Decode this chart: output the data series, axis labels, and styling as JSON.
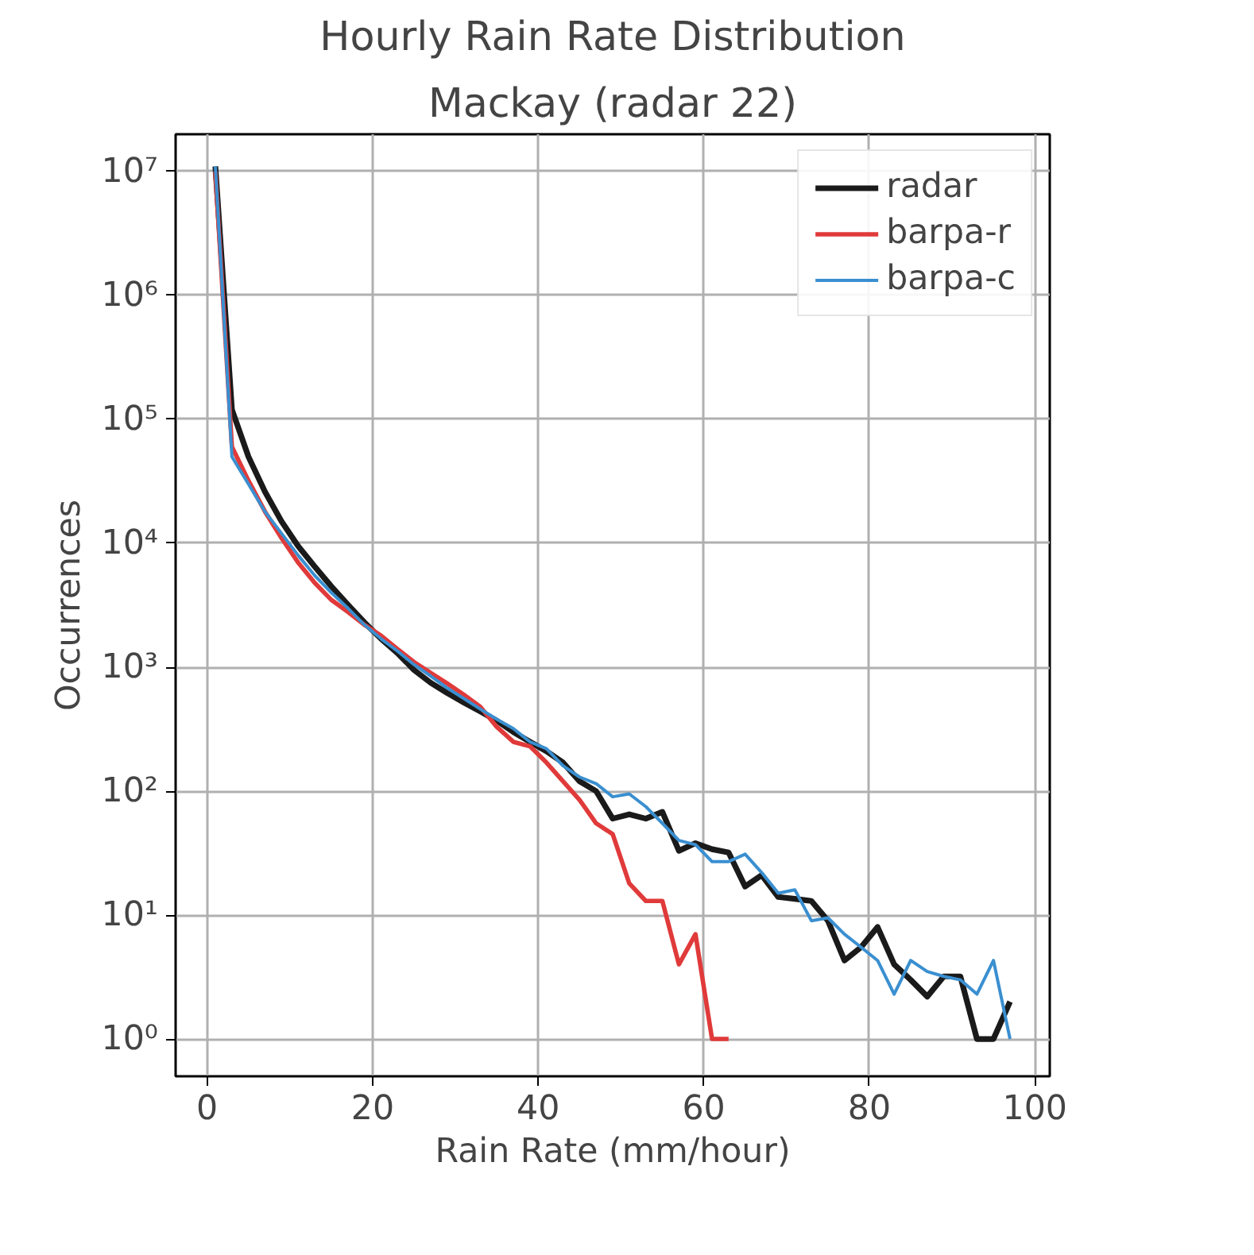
{
  "chart_data": {
    "type": "line",
    "title": "Hourly Rain Rate Distribution",
    "subtitle": "Mackay (radar 22)",
    "xlabel": "Rain Rate (mm/hour)",
    "ylabel": "Occurrences",
    "xlim": [
      -3.8,
      101.8
    ],
    "xticks": [
      0,
      20,
      40,
      60,
      80,
      100
    ],
    "ylim": [
      0.5,
      20000000
    ],
    "yticks": [
      {
        "value": 1,
        "label": "10⁰"
      },
      {
        "value": 10,
        "label": "10¹"
      },
      {
        "value": 100,
        "label": "10²"
      },
      {
        "value": 1000,
        "label": "10³"
      },
      {
        "value": 10000,
        "label": "10⁴"
      },
      {
        "value": 100000,
        "label": "10⁵"
      },
      {
        "value": 1000000,
        "label": "10⁶"
      },
      {
        "value": 10000000,
        "label": "10⁷"
      }
    ],
    "log": "y",
    "grid": true,
    "legend": "top right",
    "line_style": "solid",
    "marker": "none",
    "series": [
      {
        "name": "radar",
        "color": "#1a1a1a",
        "x": [
          1,
          3,
          5,
          7,
          9,
          11,
          13,
          15,
          17,
          19,
          21,
          23,
          25,
          27,
          29,
          31,
          33,
          35,
          37,
          39,
          41,
          43,
          45,
          47,
          49,
          51,
          53,
          55,
          57,
          59,
          61,
          63,
          65,
          67,
          69,
          71,
          73,
          75,
          77,
          79,
          81,
          83,
          85,
          87,
          89,
          91,
          93,
          95,
          97
        ],
        "values": [
          11000000,
          120000,
          50000,
          26000,
          15000,
          9500,
          6500,
          4500,
          3200,
          2300,
          1700,
          1300,
          950,
          750,
          620,
          520,
          440,
          370,
          300,
          250,
          210,
          170,
          120,
          100,
          60,
          65,
          60,
          68,
          33,
          38,
          34,
          32,
          17,
          21,
          14,
          13.5,
          13,
          9,
          4.3,
          5.5,
          8,
          4,
          3,
          2.2,
          3.2,
          3.2,
          1,
          1,
          2
        ]
      },
      {
        "name": "barpa-r",
        "color": "#e03a3a",
        "x": [
          1,
          3,
          5,
          7,
          9,
          11,
          13,
          15,
          17,
          19,
          21,
          23,
          25,
          27,
          29,
          31,
          33,
          35,
          37,
          39,
          41,
          43,
          45,
          47,
          49,
          51,
          53,
          55,
          57,
          59,
          61,
          63
        ],
        "values": [
          10000000,
          60000,
          32000,
          18000,
          11000,
          7000,
          4800,
          3500,
          2800,
          2200,
          1800,
          1400,
          1100,
          900,
          740,
          600,
          480,
          330,
          250,
          230,
          170,
          120,
          85,
          55,
          45,
          18,
          13,
          13,
          4,
          7,
          1,
          1
        ]
      },
      {
        "name": "barpa-c",
        "color": "#3a8fd0",
        "x": [
          1,
          3,
          5,
          7,
          9,
          11,
          13,
          15,
          17,
          19,
          21,
          23,
          25,
          27,
          29,
          31,
          33,
          35,
          37,
          39,
          41,
          43,
          45,
          47,
          49,
          51,
          53,
          55,
          57,
          59,
          61,
          63,
          65,
          67,
          69,
          71,
          73,
          75,
          77,
          79,
          81,
          83,
          85,
          87,
          89,
          91,
          93,
          95,
          97
        ],
        "values": [
          11000000,
          50000,
          30000,
          18000,
          12000,
          8000,
          5500,
          4000,
          3000,
          2200,
          1700,
          1350,
          1050,
          850,
          680,
          560,
          460,
          380,
          320,
          250,
          220,
          160,
          130,
          115,
          90,
          95,
          75,
          55,
          40,
          37,
          27,
          27,
          31,
          22,
          15,
          16,
          9,
          9.5,
          7,
          5.5,
          4.3,
          2.3,
          4.3,
          3.5,
          3.2,
          3,
          2.3,
          4.3,
          1
        ]
      }
    ]
  }
}
